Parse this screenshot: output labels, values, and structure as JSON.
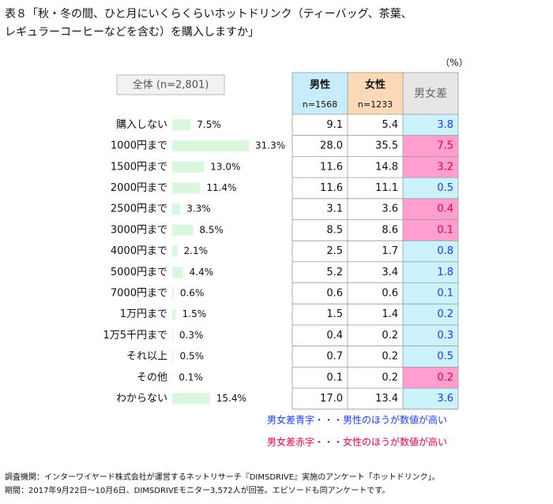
{
  "chart_data": {
    "type": "bar-table",
    "title_lines": [
      "表８「秋・冬の間、ひと月にいくらくらいホットドリンク（ティーバッグ、茶葉、",
      "レギュラーコーヒーなどを含む）を購入しますか」"
    ],
    "unit": "（%）",
    "overall_label": "全体 (n=2,801)",
    "categories": [
      "購入しない",
      "1000円まで",
      "1500円まで",
      "2000円まで",
      "2500円まで",
      "3000円まで",
      "4000円まで",
      "5000円まで",
      "7000円まで",
      "1万円まで",
      "1万5千円まで",
      "それ以上",
      "その他",
      "わからない"
    ],
    "values": [
      7.5,
      31.3,
      13.0,
      11.4,
      3.3,
      8.5,
      2.1,
      4.4,
      0.6,
      1.5,
      0.3,
      0.5,
      0.1,
      15.4
    ],
    "value_labels": [
      "7.5%",
      "31.3%",
      "13.0%",
      "11.4%",
      "3.3%",
      "8.5%",
      "2.1%",
      "4.4%",
      "0.6%",
      "1.5%",
      "0.3%",
      "0.5%",
      "0.1%",
      "15.4%"
    ],
    "color": "#d9f7dc",
    "table": {
      "columns": [
        {
          "name": "男性",
          "n": "n=1568",
          "color": "#c9ecfa",
          "values": [
            "9.1",
            "28.0",
            "11.6",
            "11.6",
            "3.1",
            "8.5",
            "2.5",
            "5.2",
            "0.6",
            "1.5",
            "0.4",
            "0.7",
            "0.1",
            "17.0"
          ]
        },
        {
          "name": "女性",
          "n": "n=1233",
          "color": "#fcd9b6",
          "values": [
            "5.4",
            "35.5",
            "14.8",
            "11.1",
            "3.6",
            "8.6",
            "1.7",
            "3.4",
            "0.6",
            "1.4",
            "0.2",
            "0.2",
            "0.2",
            "13.4"
          ]
        }
      ],
      "diff": {
        "name": "男女差",
        "color": "#e6e6e6",
        "values": [
          "3.8",
          "7.5",
          "3.2",
          "0.5",
          "0.4",
          "0.1",
          "0.8",
          "1.8",
          "0.1",
          "0.2",
          "0.3",
          "0.5",
          "0.2",
          "3.6"
        ],
        "text_colors": [
          "#1a3cff",
          "#e8004a",
          "#e8004a",
          "#1a3cff",
          "#e8004a",
          "#e8004a",
          "#1a3cff",
          "#1a3cff",
          "#1a3cff",
          "#1a3cff",
          "#1a3cff",
          "#1a3cff",
          "#e8004a",
          "#1a3cff"
        ],
        "fills": [
          "#ccf3fb",
          "#ff9fd0",
          "#ff9fd0",
          "#ccf3fb",
          "#ff9fd0",
          "#ff9fd0",
          "#ccf3fb",
          "#ccf3fb",
          "#ccf3fb",
          "#ccf3fb",
          "#ccf3fb",
          "#ccf3fb",
          "#ff9fd0",
          "#ccf3fb"
        ]
      }
    },
    "notes": [
      {
        "text": "男女差青字・・・男性のほうが数値が高い",
        "color": "#1a3cff"
      },
      {
        "text": "男女差赤字・・・女性のほうが数値が高い",
        "color": "#e8004a"
      }
    ],
    "footer": [
      "調査機関：インターワイヤード株式会社が運営するネットリサーチ『DIMSDRIVE』実施のアンケート「ホットドリンク」。",
      "期間：2017年9月22日～10月6日、DIMSDRIVEモニター3,572人が回答。エピソードも同アンケートです。"
    ]
  }
}
